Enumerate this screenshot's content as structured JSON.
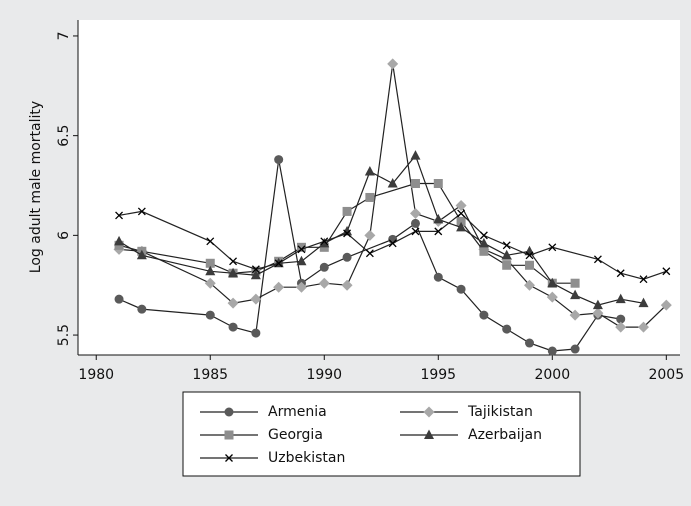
{
  "chart_data": {
    "type": "line",
    "ylabel": "Log adult male mortality",
    "xlim": [
      1979.2,
      2005.6
    ],
    "xticks": [
      1980,
      1985,
      1990,
      1995,
      2000,
      2005
    ],
    "ylim": [
      5.4,
      7.08
    ],
    "yticks": [
      5.5,
      6,
      6.5,
      7
    ],
    "grid": false,
    "legend": "bottom",
    "series": [
      {
        "name": "Armenia",
        "color": "#5a5a5a",
        "marker": "circle",
        "x": [
          1981,
          1982,
          1985,
          1986,
          1987,
          1988,
          1989,
          1990,
          1991,
          1993,
          1994,
          1995,
          1996,
          1997,
          1998,
          1999,
          2000,
          2001,
          2002,
          2003
        ],
        "values": [
          5.68,
          5.63,
          5.6,
          5.54,
          5.51,
          6.38,
          5.76,
          5.84,
          5.89,
          5.98,
          6.06,
          5.79,
          5.73,
          5.6,
          5.53,
          5.46,
          5.42,
          5.43,
          5.6,
          5.58
        ]
      },
      {
        "name": "Tajikistan",
        "color": "#a8a8a8",
        "marker": "diamond",
        "x": [
          1981,
          1982,
          1985,
          1986,
          1987,
          1988,
          1989,
          1990,
          1991,
          1992,
          1993,
          1994,
          1995,
          1996,
          1997,
          1998,
          1999,
          2000,
          2001,
          2002,
          2003,
          2004,
          2005
        ],
        "values": [
          5.93,
          5.92,
          5.76,
          5.66,
          5.68,
          5.74,
          5.74,
          5.76,
          5.75,
          6.0,
          6.86,
          6.11,
          6.07,
          6.15,
          5.93,
          5.88,
          5.75,
          5.69,
          5.6,
          5.61,
          5.54,
          5.54,
          5.65
        ]
      },
      {
        "name": "Georgia",
        "color": "#8e8e8e",
        "marker": "square",
        "x": [
          1981,
          1982,
          1985,
          1986,
          1987,
          1988,
          1989,
          1990,
          1991,
          1992,
          1994,
          1995,
          1996,
          1997,
          1998,
          1999,
          2000,
          2001
        ],
        "values": [
          5.95,
          5.92,
          5.86,
          5.81,
          5.82,
          5.87,
          5.94,
          5.94,
          6.12,
          6.19,
          6.26,
          6.26,
          6.07,
          5.92,
          5.85,
          5.85,
          5.76,
          5.76
        ]
      },
      {
        "name": "Azerbaijan",
        "color": "#3c3c3c",
        "marker": "triangle",
        "x": [
          1981,
          1982,
          1985,
          1986,
          1987,
          1988,
          1989,
          1990,
          1991,
          1992,
          1993,
          1994,
          1995,
          1996,
          1997,
          1998,
          1999,
          2000,
          2001,
          2002,
          2003,
          2004
        ],
        "values": [
          5.97,
          5.9,
          5.82,
          5.81,
          5.8,
          5.86,
          5.87,
          5.96,
          6.02,
          6.32,
          6.26,
          6.4,
          6.08,
          6.04,
          5.96,
          5.9,
          5.92,
          5.76,
          5.7,
          5.65,
          5.68,
          5.66
        ]
      },
      {
        "name": "Uzbekistan",
        "color": "#000000",
        "marker": "x",
        "x": [
          1981,
          1982,
          1985,
          1986,
          1987,
          1988,
          1989,
          1990,
          1991,
          1992,
          1993,
          1994,
          1995,
          1996,
          1997,
          1998,
          1999,
          2000,
          2002,
          2003,
          2004,
          2005
        ],
        "values": [
          6.1,
          6.12,
          5.97,
          5.87,
          5.83,
          5.86,
          5.93,
          5.97,
          6.01,
          5.91,
          5.96,
          6.02,
          6.02,
          6.11,
          6.0,
          5.95,
          5.9,
          5.94,
          5.88,
          5.81,
          5.78,
          5.82
        ]
      }
    ]
  }
}
